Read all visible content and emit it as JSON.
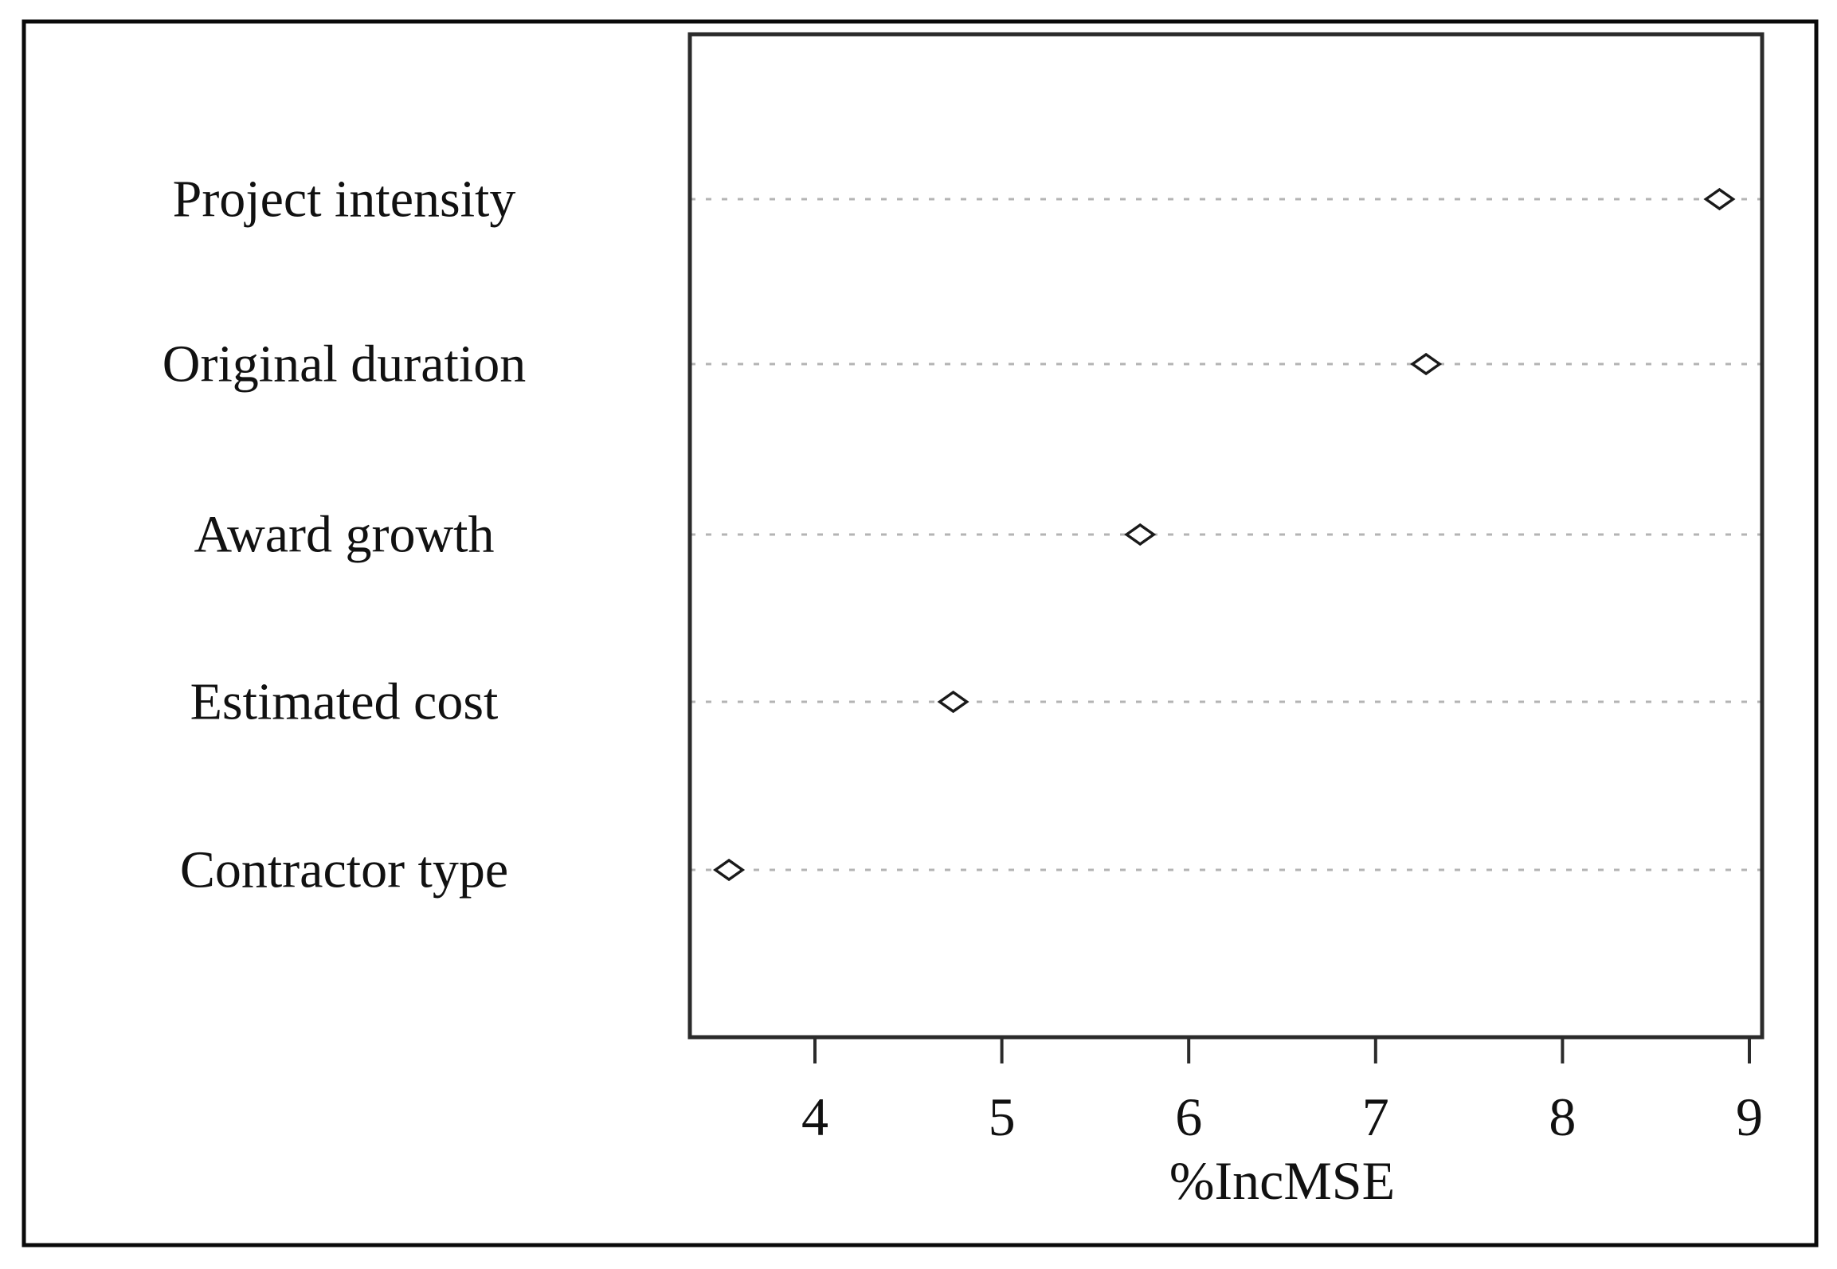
{
  "figure": {
    "background": "#ffffff",
    "outer_border_color": "#0a0a0a",
    "plot_box_color": "#2b2b2b",
    "grid_color": "#b4b4b4",
    "marker_color": "#1a1a1a",
    "text_color": "#111111"
  },
  "chart_data": {
    "type": "scatter",
    "variant": "dotchart-variable-importance",
    "title": "",
    "categories": [
      "Project intensity",
      "Original duration",
      "Award growth",
      "Estimated cost",
      "Contractor type"
    ],
    "values": [
      8.84,
      7.27,
      5.74,
      4.74,
      3.54
    ],
    "xlabel": "%IncMSE",
    "ylabel": "",
    "x_ticks": [
      "4",
      "5",
      "6",
      "7",
      "8",
      "9"
    ],
    "x_tick_values": [
      4,
      5,
      6,
      7,
      8,
      9
    ],
    "xlim": [
      3.33,
      9.07
    ],
    "grid": "horizontal dashed guide lines per category",
    "legend_position": "none",
    "marker": "open-diamond"
  }
}
